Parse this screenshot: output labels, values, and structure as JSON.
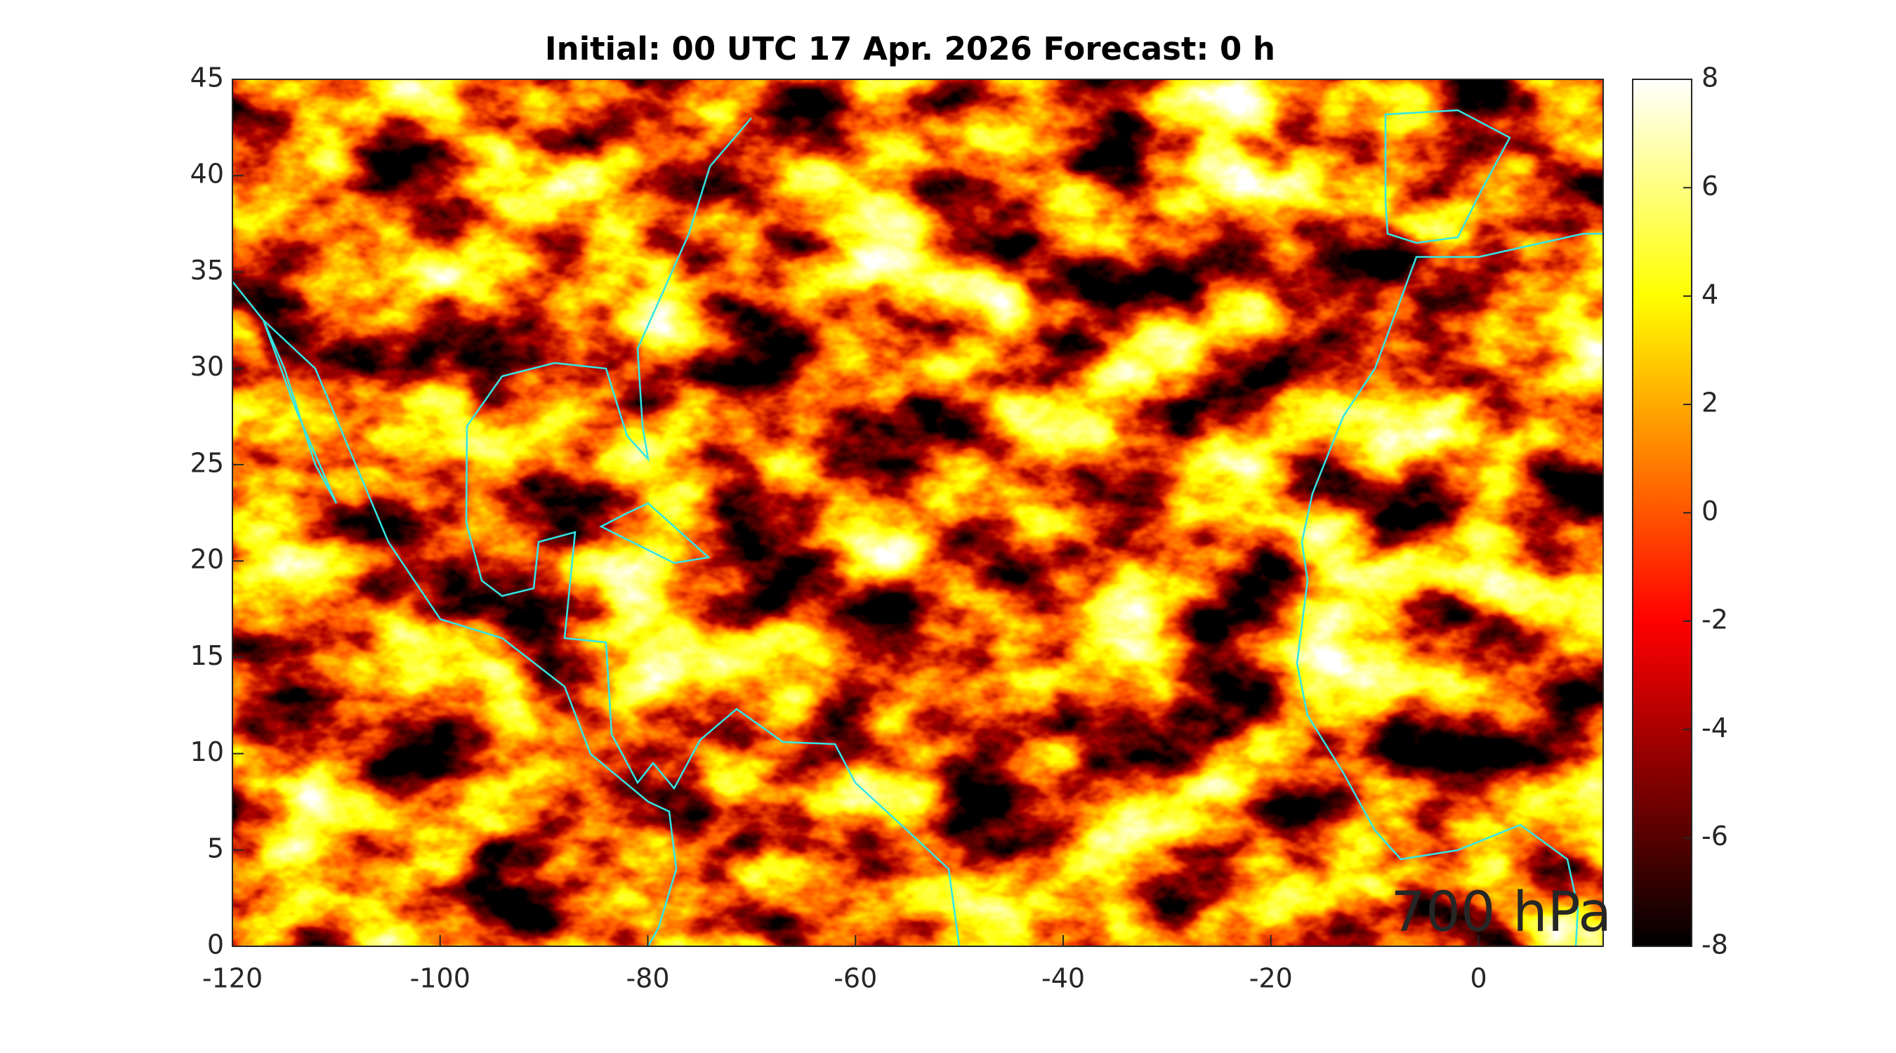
{
  "chart_data": {
    "type": "heatmap",
    "title": "Initial: 00 UTC 17 Apr. 2026 Forecast: 0 h",
    "annotation": "700 hPa",
    "annotation_color": "#00ff00",
    "coastline_color": "#33e6e6",
    "xlim": [
      -120,
      12
    ],
    "xticks": [
      -120,
      -100,
      -80,
      -60,
      -40,
      -20,
      0
    ],
    "ylim": [
      0,
      45
    ],
    "yticks": [
      0,
      5,
      10,
      15,
      20,
      25,
      30,
      35,
      40,
      45
    ],
    "colorbar": {
      "colormap": "hot",
      "lim": [
        -8,
        8
      ],
      "ticks": [
        -8,
        -6,
        -4,
        -2,
        0,
        2,
        4,
        6,
        8
      ]
    }
  }
}
